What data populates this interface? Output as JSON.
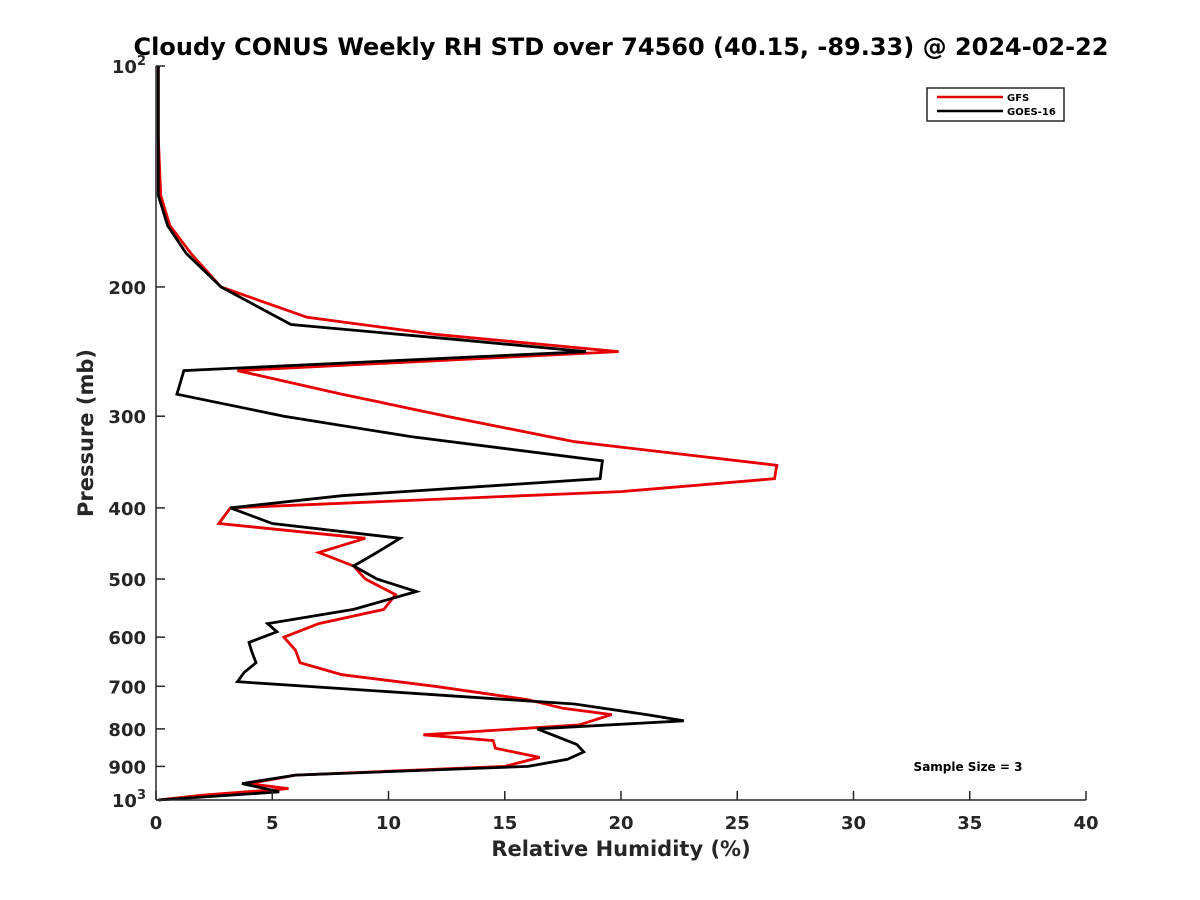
{
  "chart_data": {
    "type": "line",
    "title": "Cloudy CONUS Weekly RH STD over 74560 (40.15, -89.33) @ 2024-02-22",
    "xlabel": "Relative Humidity (%)",
    "ylabel": "Pressure (mb)",
    "xlim": [
      0,
      40
    ],
    "ylim": [
      100,
      1000
    ],
    "y_scale": "log",
    "y_reversed": true,
    "grid": false,
    "x_ticks": [
      "0",
      "5",
      "10",
      "15",
      "20",
      "25",
      "30",
      "35",
      "40"
    ],
    "y_ticks": [
      {
        "value": 100,
        "label": "10",
        "sup": "2"
      },
      {
        "value": 200,
        "label": "200",
        "sup": ""
      },
      {
        "value": 300,
        "label": "300",
        "sup": ""
      },
      {
        "value": 400,
        "label": "400",
        "sup": ""
      },
      {
        "value": 500,
        "label": "500",
        "sup": ""
      },
      {
        "value": 600,
        "label": "600",
        "sup": ""
      },
      {
        "value": 700,
        "label": "700",
        "sup": ""
      },
      {
        "value": 800,
        "label": "800",
        "sup": ""
      },
      {
        "value": 900,
        "label": "900",
        "sup": ""
      },
      {
        "value": 1000,
        "label": "10",
        "sup": "3"
      }
    ],
    "legend_position": "top-right",
    "annotation": "Sample Size = 3",
    "series": [
      {
        "name": "GFS",
        "color": "#e60000",
        "points": [
          [
            0.1,
            100
          ],
          [
            0.1,
            125
          ],
          [
            0.2,
            150
          ],
          [
            0.6,
            165
          ],
          [
            1.5,
            180
          ],
          [
            2.8,
            200
          ],
          [
            6.5,
            220
          ],
          [
            12,
            232
          ],
          [
            19.9,
            245
          ],
          [
            3.5,
            260
          ],
          [
            8,
            280
          ],
          [
            12.5,
            300
          ],
          [
            18,
            325
          ],
          [
            26.7,
            350
          ],
          [
            26.6,
            365
          ],
          [
            20,
            380
          ],
          [
            3.2,
            400
          ],
          [
            2.7,
            420
          ],
          [
            9,
            440
          ],
          [
            7,
            460
          ],
          [
            8.5,
            480
          ],
          [
            9,
            500
          ],
          [
            10.3,
            525
          ],
          [
            9.8,
            550
          ],
          [
            7,
            575
          ],
          [
            5.5,
            600
          ],
          [
            6,
            625
          ],
          [
            6.2,
            650
          ],
          [
            8,
            675
          ],
          [
            12,
            700
          ],
          [
            16,
            730
          ],
          [
            17.5,
            750
          ],
          [
            19.6,
            765
          ],
          [
            18.2,
            790
          ],
          [
            11.5,
            815
          ],
          [
            14.5,
            830
          ],
          [
            14.6,
            850
          ],
          [
            16.5,
            875
          ],
          [
            15,
            900
          ],
          [
            6,
            925
          ],
          [
            4,
            950
          ],
          [
            5.7,
            965
          ],
          [
            2,
            985
          ],
          [
            0.1,
            1000
          ]
        ]
      },
      {
        "name": "GOES-16",
        "color": "#000000",
        "points": [
          [
            0.1,
            100
          ],
          [
            0.1,
            125
          ],
          [
            0.1,
            150
          ],
          [
            0.5,
            165
          ],
          [
            1.3,
            180
          ],
          [
            2.8,
            200
          ],
          [
            5.8,
            225
          ],
          [
            13,
            236
          ],
          [
            18.5,
            245
          ],
          [
            1.2,
            260
          ],
          [
            0.9,
            280
          ],
          [
            5.5,
            300
          ],
          [
            11,
            320
          ],
          [
            19.2,
            345
          ],
          [
            19.1,
            365
          ],
          [
            8,
            385
          ],
          [
            3.2,
            400
          ],
          [
            5,
            420
          ],
          [
            10.5,
            440
          ],
          [
            9.5,
            460
          ],
          [
            8.5,
            480
          ],
          [
            9.5,
            500
          ],
          [
            11.2,
            520
          ],
          [
            8.5,
            550
          ],
          [
            4.8,
            575
          ],
          [
            5.2,
            590
          ],
          [
            4,
            610
          ],
          [
            4.1,
            625
          ],
          [
            4.3,
            650
          ],
          [
            3.8,
            670
          ],
          [
            3.5,
            690
          ],
          [
            18,
            740
          ],
          [
            21.1,
            765
          ],
          [
            22.7,
            780
          ],
          [
            16.4,
            800
          ],
          [
            18.1,
            840
          ],
          [
            18.4,
            860
          ],
          [
            17.7,
            880
          ],
          [
            16,
            900
          ],
          [
            6,
            925
          ],
          [
            3.7,
            950
          ],
          [
            4.7,
            965
          ],
          [
            5.3,
            975
          ],
          [
            0.1,
            1000
          ]
        ]
      }
    ]
  }
}
